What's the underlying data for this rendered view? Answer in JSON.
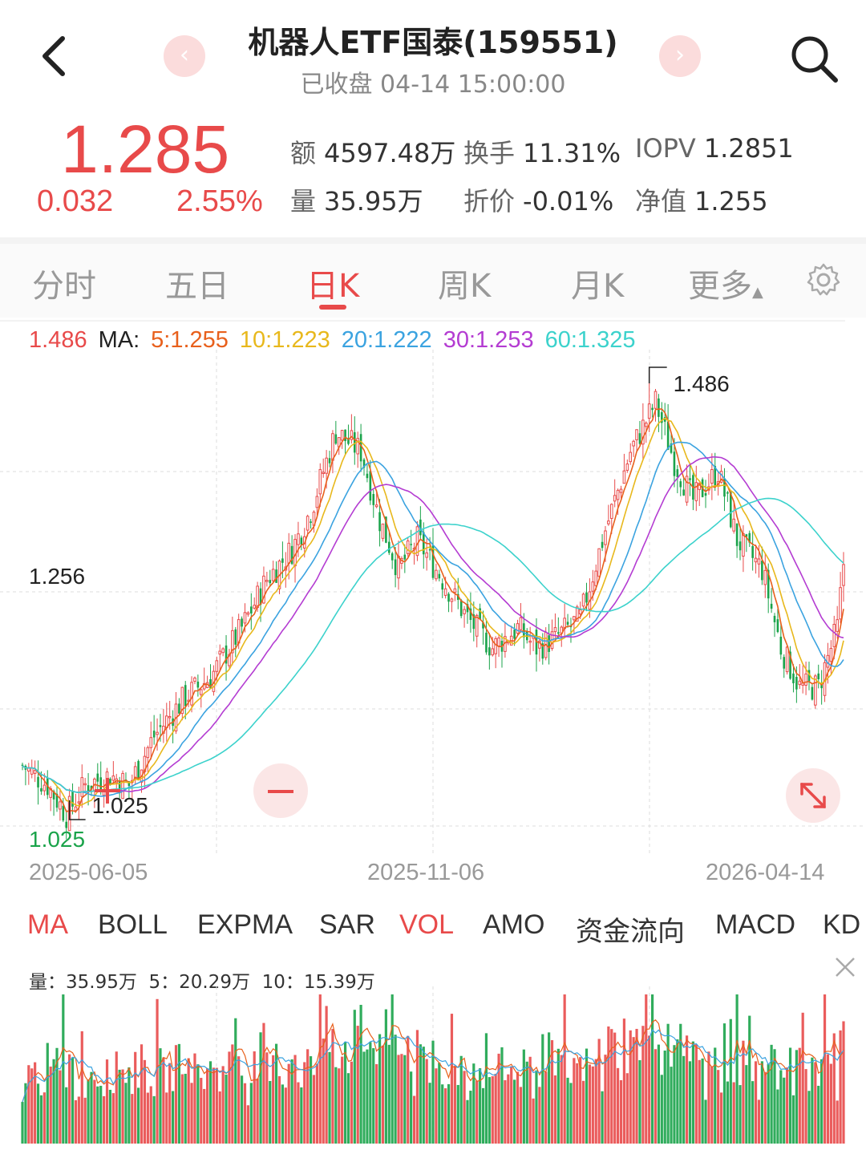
{
  "header": {
    "title": "机器人ETF国泰(159551)",
    "status": "已收盘 04-14 15:00:00",
    "prev_icon": "chevron-left-icon",
    "next_icon": "chevron-right-icon"
  },
  "quote": {
    "price": "1.285",
    "change": "0.032",
    "change_pct": "2.55%",
    "amount_label": "额",
    "amount": "4597.48万",
    "turnover_label": "换手",
    "turnover": "11.31%",
    "iopv_label": "IOPV",
    "iopv": "1.2851",
    "volume_label": "量",
    "volume": "35.95万",
    "discount_label": "折价",
    "discount": "-0.01%",
    "nav_label": "净值",
    "nav": "1.255"
  },
  "tabs": [
    {
      "label": "分时"
    },
    {
      "label": "五日"
    },
    {
      "label": "日K"
    },
    {
      "label": "周K"
    },
    {
      "label": "月K"
    },
    {
      "label": "更多"
    }
  ],
  "active_tab": "日K",
  "ma_legend": {
    "price": "1.486",
    "ma_label": "MA:",
    "ma5": "5:1.255",
    "ma10": "10:1.223",
    "ma20": "20:1.222",
    "ma30": "30:1.253",
    "ma60": "60:1.325"
  },
  "colors": {
    "up": "#e84a4a",
    "down": "#1aa34a",
    "ma5": "#e8601c",
    "ma10": "#e8b81c",
    "ma20": "#3ba3e0",
    "ma30": "#b43cd2",
    "ma60": "#3cd2cc"
  },
  "chart_data": {
    "type": "candlestick",
    "x_start": "2025-06-05",
    "x_mid": "2025-11-06",
    "x_end": "2026-04-14",
    "axis_labels": {
      "top": "1.486",
      "mid": "1.256",
      "bottom": "1.025"
    },
    "high_marker": "1.486",
    "low_marker": "1.025",
    "ylim": [
      1.025,
      1.486
    ],
    "anchors": [
      [
        0,
        1.08
      ],
      [
        8,
        1.06
      ],
      [
        14,
        1.03
      ],
      [
        20,
        1.06
      ],
      [
        28,
        1.07
      ],
      [
        34,
        1.06
      ],
      [
        42,
        1.11
      ],
      [
        52,
        1.15
      ],
      [
        60,
        1.17
      ],
      [
        70,
        1.22
      ],
      [
        78,
        1.27
      ],
      [
        86,
        1.3
      ],
      [
        92,
        1.34
      ],
      [
        100,
        1.42
      ],
      [
        108,
        1.4
      ],
      [
        114,
        1.33
      ],
      [
        120,
        1.28
      ],
      [
        126,
        1.31
      ],
      [
        134,
        1.27
      ],
      [
        142,
        1.23
      ],
      [
        150,
        1.2
      ],
      [
        158,
        1.22
      ],
      [
        164,
        1.2
      ],
      [
        170,
        1.21
      ],
      [
        178,
        1.23
      ],
      [
        186,
        1.32
      ],
      [
        194,
        1.4
      ],
      [
        202,
        1.45
      ],
      [
        208,
        1.39
      ],
      [
        214,
        1.35
      ],
      [
        222,
        1.38
      ],
      [
        228,
        1.31
      ],
      [
        236,
        1.28
      ],
      [
        242,
        1.2
      ],
      [
        248,
        1.16
      ],
      [
        254,
        1.16
      ],
      [
        260,
        1.22
      ],
      [
        262,
        1.285
      ]
    ]
  },
  "dates": [
    "2025-06-05",
    "2025-11-06",
    "2026-04-14"
  ],
  "indicators": [
    "MA",
    "BOLL",
    "EXPMA",
    "SAR",
    "VOL",
    "AMO",
    "资金流向",
    "MACD",
    "KD"
  ],
  "indicators_on": [
    "MA",
    "VOL"
  ],
  "volume_legend": {
    "vol": "量：35.95万",
    "ma5": "5：20.29万",
    "ma10": "10：15.39万"
  },
  "zoom_out_label": "−"
}
